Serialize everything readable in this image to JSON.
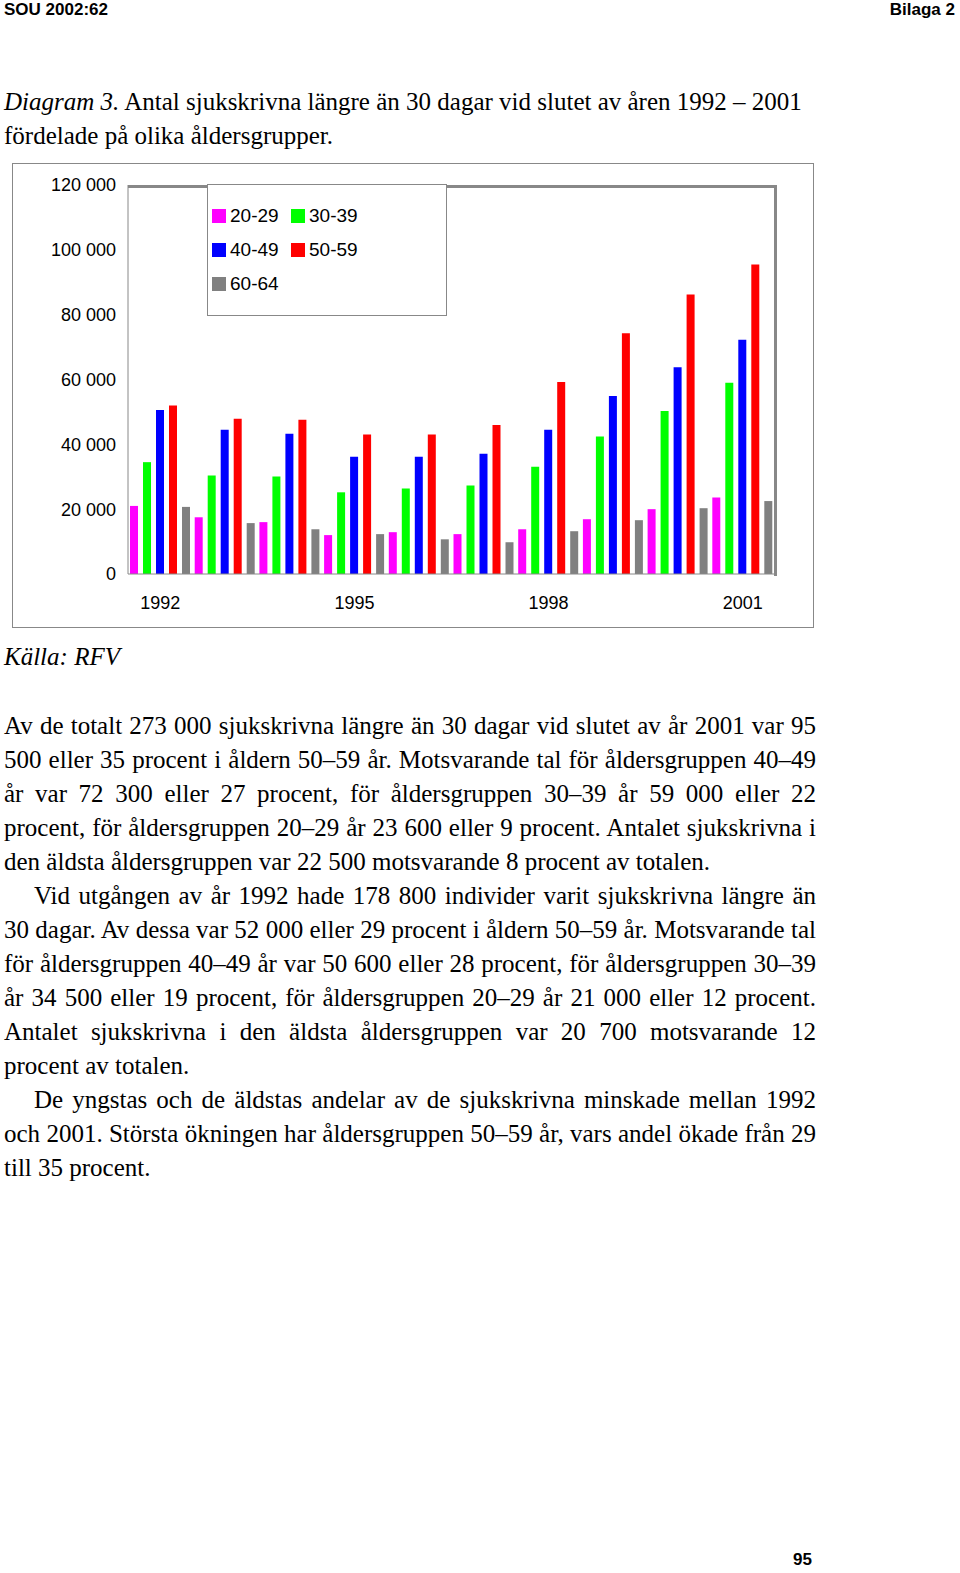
{
  "header": {
    "left": "SOU 2002:62",
    "right": "Bilaga 2"
  },
  "caption": {
    "label": "Diagram 3.",
    "text": "Antal sjukskrivna längre än 30 dagar vid slutet av åren 1992 – 2001 fördelade på olika åldersgrupper."
  },
  "chart_data": {
    "type": "bar",
    "categories": [
      "1992",
      null,
      null,
      "1995",
      null,
      null,
      "1998",
      null,
      null,
      "2001"
    ],
    "series": [
      {
        "name": "20-29",
        "color": "#ff00ff",
        "values": [
          21000,
          17500,
          16000,
          12000,
          12900,
          12300,
          13800,
          16900,
          20000,
          23600
        ]
      },
      {
        "name": "30-39",
        "color": "#00ff00",
        "values": [
          34500,
          30400,
          30100,
          25200,
          26400,
          27300,
          33100,
          42400,
          50300,
          59000
        ]
      },
      {
        "name": "40-49",
        "color": "#0000ff",
        "values": [
          50600,
          44500,
          43300,
          36200,
          36200,
          37100,
          44500,
          54900,
          63800,
          72300
        ]
      },
      {
        "name": "50-59",
        "color": "#ff0000",
        "values": [
          52000,
          47900,
          47600,
          43000,
          43000,
          46000,
          59200,
          74300,
          86200,
          95500
        ]
      },
      {
        "name": "60-64",
        "color": "#808080",
        "values": [
          20700,
          15700,
          13800,
          12300,
          10700,
          9800,
          13200,
          16600,
          20300,
          22500
        ]
      }
    ],
    "ylim": [
      0,
      120000
    ],
    "yticks": [
      0,
      {
        "value": 20000,
        "label": "20 000"
      },
      {
        "value": 40000,
        "label": "40 000"
      },
      {
        "value": 60000,
        "label": "60 000"
      },
      {
        "value": 80000,
        "label": "80 000"
      },
      {
        "value": 100000,
        "label": "100 000"
      },
      {
        "value": 120000,
        "label": "120 000"
      }
    ],
    "grid": false,
    "legend": "upper left"
  },
  "source": "Källa: RFV",
  "paragraphs": [
    "Av de totalt 273 000 sjukskrivna längre än 30 dagar vid slutet av år 2001 var 95 500 eller 35 procent i åldern 50–59 år. Motsvarande tal för åldersgruppen 40–49 år var 72 300 eller 27 procent, för åldersgruppen 30–39 år 59 000 eller 22 procent, för åldersgruppen 20–29 år 23 600 eller 9 procent. Antalet sjukskrivna i den äldsta åldersgruppen var 22 500 motsvarande 8 procent av totalen.",
    "Vid utgången av år 1992 hade 178 800 individer varit sjukskrivna längre än 30 dagar. Av dessa var 52 000 eller 29 procent i åldern 50–59 år. Motsvarande tal för åldersgruppen 40–49 år var 50 600 eller 28 procent, för åldersgruppen 30–39 år 34 500 eller 19 procent, för åldersgruppen 20–29 år 21 000 eller 12 procent. Antalet sjukskrivna i den äldsta åldersgruppen var 20 700 motsvarande 12 procent av totalen.",
    "De yngstas och de äldstas andelar av de sjukskrivna minskade mellan 1992 och 2001. Största ökningen har åldersgruppen 50–59 år, vars andel ökade från 29 till 35 procent."
  ],
  "page_number": "95"
}
